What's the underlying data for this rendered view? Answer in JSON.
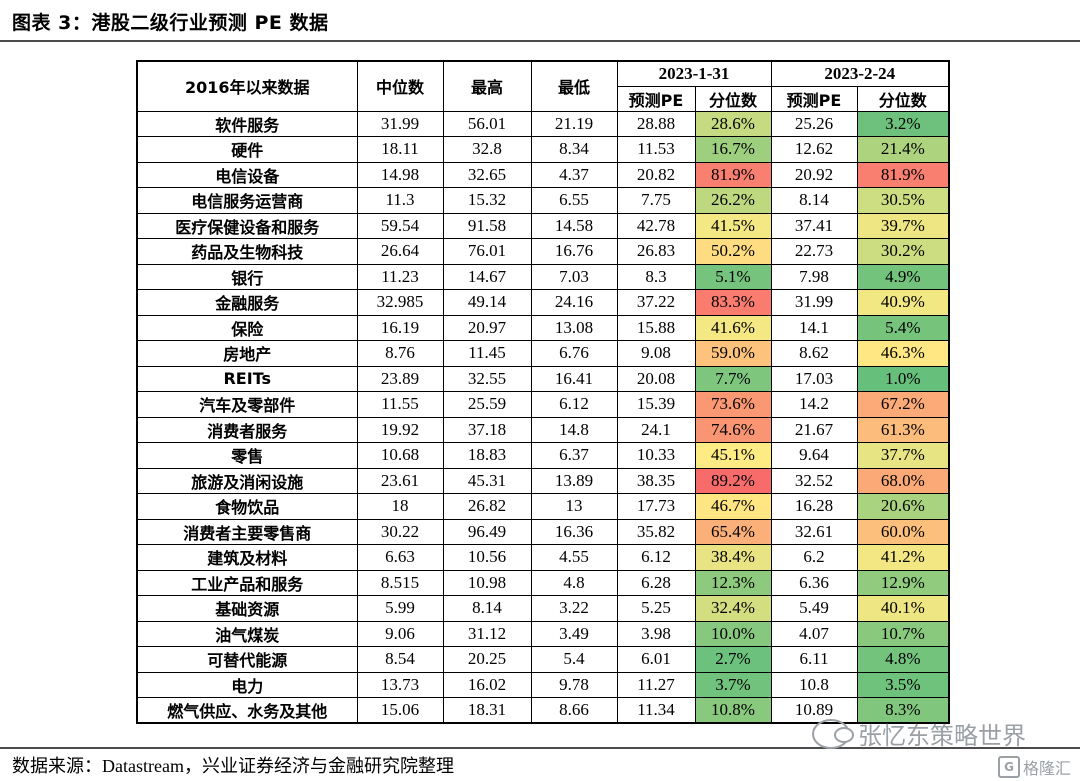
{
  "title": "图表 3：港股二级行业预测 PE 数据",
  "source": "数据来源：Datastream，兴业证券经济与金融研究院整理",
  "watermark": "张忆东策略世界",
  "logo": "格隆汇",
  "logo_letter": "G",
  "header": {
    "row_label": "2016年以来数据",
    "median": "中位数",
    "max": "最高",
    "min": "最低",
    "date1": "2023-1-31",
    "date2": "2023-2-24",
    "pe": "预测PE",
    "pct": "分位数"
  },
  "heat_colors": {
    "low": "#63be7b",
    "mid": "#ffeb84",
    "high": "#f8696b"
  },
  "rows": [
    {
      "name": "软件服务",
      "median": "31.99",
      "max": "56.01",
      "min": "21.19",
      "pe1": "28.88",
      "pct1": "28.6%",
      "pe2": "25.26",
      "pct2": "3.2%"
    },
    {
      "name": "硬件",
      "median": "18.11",
      "max": "32.8",
      "min": "8.34",
      "pe1": "11.53",
      "pct1": "16.7%",
      "pe2": "12.62",
      "pct2": "21.4%"
    },
    {
      "name": "电信设备",
      "median": "14.98",
      "max": "32.65",
      "min": "4.37",
      "pe1": "20.82",
      "pct1": "81.9%",
      "pe2": "20.92",
      "pct2": "81.9%"
    },
    {
      "name": "电信服务运营商",
      "median": "11.3",
      "max": "15.32",
      "min": "6.55",
      "pe1": "7.75",
      "pct1": "26.2%",
      "pe2": "8.14",
      "pct2": "30.5%"
    },
    {
      "name": "医疗保健设备和服务",
      "median": "59.54",
      "max": "91.58",
      "min": "14.58",
      "pe1": "42.78",
      "pct1": "41.5%",
      "pe2": "37.41",
      "pct2": "39.7%"
    },
    {
      "name": "药品及生物科技",
      "median": "26.64",
      "max": "76.01",
      "min": "16.76",
      "pe1": "26.83",
      "pct1": "50.2%",
      "pe2": "22.73",
      "pct2": "30.2%"
    },
    {
      "name": "银行",
      "median": "11.23",
      "max": "14.67",
      "min": "7.03",
      "pe1": "8.3",
      "pct1": "5.1%",
      "pe2": "7.98",
      "pct2": "4.9%"
    },
    {
      "name": "金融服务",
      "median": "32.985",
      "max": "49.14",
      "min": "24.16",
      "pe1": "37.22",
      "pct1": "83.3%",
      "pe2": "31.99",
      "pct2": "40.9%"
    },
    {
      "name": "保险",
      "median": "16.19",
      "max": "20.97",
      "min": "13.08",
      "pe1": "15.88",
      "pct1": "41.6%",
      "pe2": "14.1",
      "pct2": "5.4%"
    },
    {
      "name": "房地产",
      "median": "8.76",
      "max": "11.45",
      "min": "6.76",
      "pe1": "9.08",
      "pct1": "59.0%",
      "pe2": "8.62",
      "pct2": "46.3%"
    },
    {
      "name": "REITs",
      "median": "23.89",
      "max": "32.55",
      "min": "16.41",
      "pe1": "20.08",
      "pct1": "7.7%",
      "pe2": "17.03",
      "pct2": "1.0%"
    },
    {
      "name": "汽车及零部件",
      "median": "11.55",
      "max": "25.59",
      "min": "6.12",
      "pe1": "15.39",
      "pct1": "73.6%",
      "pe2": "14.2",
      "pct2": "67.2%"
    },
    {
      "name": "消费者服务",
      "median": "19.92",
      "max": "37.18",
      "min": "14.8",
      "pe1": "24.1",
      "pct1": "74.6%",
      "pe2": "21.67",
      "pct2": "61.3%"
    },
    {
      "name": "零售",
      "median": "10.68",
      "max": "18.83",
      "min": "6.37",
      "pe1": "10.33",
      "pct1": "45.1%",
      "pe2": "9.64",
      "pct2": "37.7%"
    },
    {
      "name": "旅游及消闲设施",
      "median": "23.61",
      "max": "45.31",
      "min": "13.89",
      "pe1": "38.35",
      "pct1": "89.2%",
      "pe2": "32.52",
      "pct2": "68.0%"
    },
    {
      "name": "食物饮品",
      "median": "18",
      "max": "26.82",
      "min": "13",
      "pe1": "17.73",
      "pct1": "46.7%",
      "pe2": "16.28",
      "pct2": "20.6%"
    },
    {
      "name": "消费者主要零售商",
      "median": "30.22",
      "max": "96.49",
      "min": "16.36",
      "pe1": "35.82",
      "pct1": "65.4%",
      "pe2": "32.61",
      "pct2": "60.0%"
    },
    {
      "name": "建筑及材料",
      "median": "6.63",
      "max": "10.56",
      "min": "4.55",
      "pe1": "6.12",
      "pct1": "38.4%",
      "pe2": "6.2",
      "pct2": "41.2%"
    },
    {
      "name": "工业产品和服务",
      "median": "8.515",
      "max": "10.98",
      "min": "4.8",
      "pe1": "6.28",
      "pct1": "12.3%",
      "pe2": "6.36",
      "pct2": "12.9%"
    },
    {
      "name": "基础资源",
      "median": "5.99",
      "max": "8.14",
      "min": "3.22",
      "pe1": "5.25",
      "pct1": "32.4%",
      "pe2": "5.49",
      "pct2": "40.1%"
    },
    {
      "name": "油气煤炭",
      "median": "9.06",
      "max": "31.12",
      "min": "3.49",
      "pe1": "3.98",
      "pct1": "10.0%",
      "pe2": "4.07",
      "pct2": "10.7%"
    },
    {
      "name": "可替代能源",
      "median": "8.54",
      "max": "20.25",
      "min": "5.4",
      "pe1": "6.01",
      "pct1": "2.7%",
      "pe2": "6.11",
      "pct2": "4.8%"
    },
    {
      "name": "电力",
      "median": "13.73",
      "max": "16.02",
      "min": "9.78",
      "pe1": "11.27",
      "pct1": "3.7%",
      "pe2": "10.8",
      "pct2": "3.5%"
    },
    {
      "name": "燃气供应、水务及其他",
      "median": "15.06",
      "max": "18.31",
      "min": "8.66",
      "pe1": "11.34",
      "pct1": "10.8%",
      "pe2": "10.89",
      "pct2": "8.3%"
    }
  ]
}
